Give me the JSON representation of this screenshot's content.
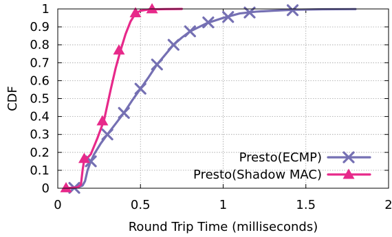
{
  "chart_data": {
    "type": "line",
    "title": "",
    "xlabel": "Round Trip Time (milliseconds)",
    "ylabel": "CDF",
    "xlim": [
      0,
      2
    ],
    "ylim": [
      0,
      1
    ],
    "xticks": [
      "0",
      "0.5",
      "1",
      "1.5",
      "2"
    ],
    "yticks": [
      "0",
      "0.1",
      "0.2",
      "0.3",
      "0.4",
      "0.5",
      "0.6",
      "0.7",
      "0.8",
      "0.9",
      "1"
    ],
    "grid": true,
    "legend_position": "bottom-right",
    "series": [
      {
        "name": "Presto(ECMP)",
        "color": "#7570b3",
        "marker": "x",
        "line": [
          [
            0.08,
            0
          ],
          [
            0.12,
            0.005
          ],
          [
            0.15,
            0.015
          ],
          [
            0.165,
            0.04
          ],
          [
            0.18,
            0.1
          ],
          [
            0.2,
            0.15
          ],
          [
            0.22,
            0.19
          ],
          [
            0.26,
            0.25
          ],
          [
            0.3,
            0.3
          ],
          [
            0.35,
            0.36
          ],
          [
            0.4,
            0.42
          ],
          [
            0.45,
            0.49
          ],
          [
            0.5,
            0.555
          ],
          [
            0.55,
            0.62
          ],
          [
            0.6,
            0.69
          ],
          [
            0.65,
            0.745
          ],
          [
            0.7,
            0.8
          ],
          [
            0.75,
            0.84
          ],
          [
            0.8,
            0.875
          ],
          [
            0.9,
            0.92
          ],
          [
            1.0,
            0.95
          ],
          [
            1.1,
            0.975
          ],
          [
            1.2,
            0.985
          ],
          [
            1.3,
            0.99
          ],
          [
            1.42,
            0.995
          ],
          [
            1.6,
            0.998
          ],
          [
            1.8,
            0.999
          ]
        ],
        "markers": [
          [
            0.1,
            0.002
          ],
          [
            0.2,
            0.15
          ],
          [
            0.3,
            0.3
          ],
          [
            0.4,
            0.42
          ],
          [
            0.5,
            0.555
          ],
          [
            0.6,
            0.69
          ],
          [
            0.7,
            0.8
          ],
          [
            0.8,
            0.875
          ],
          [
            0.91,
            0.925
          ],
          [
            1.03,
            0.955
          ],
          [
            1.16,
            0.98
          ],
          [
            1.42,
            0.993
          ]
        ]
      },
      {
        "name": "Presto(Shadow MAC)",
        "color": "#e7298a",
        "marker": "triangle",
        "line": [
          [
            0.05,
            0
          ],
          [
            0.12,
            0.005
          ],
          [
            0.14,
            0.02
          ],
          [
            0.15,
            0.1
          ],
          [
            0.16,
            0.16
          ],
          [
            0.18,
            0.17
          ],
          [
            0.2,
            0.19
          ],
          [
            0.24,
            0.28
          ],
          [
            0.28,
            0.38
          ],
          [
            0.32,
            0.55
          ],
          [
            0.35,
            0.67
          ],
          [
            0.38,
            0.77
          ],
          [
            0.41,
            0.86
          ],
          [
            0.44,
            0.93
          ],
          [
            0.47,
            0.975
          ],
          [
            0.5,
            0.99
          ],
          [
            0.55,
            0.997
          ],
          [
            0.65,
            0.999
          ],
          [
            0.75,
            1.0
          ]
        ],
        "markers": [
          [
            0.05,
            0.002
          ],
          [
            0.16,
            0.165
          ],
          [
            0.27,
            0.375
          ],
          [
            0.37,
            0.77
          ],
          [
            0.47,
            0.978
          ],
          [
            0.57,
            1.0
          ]
        ]
      }
    ]
  }
}
